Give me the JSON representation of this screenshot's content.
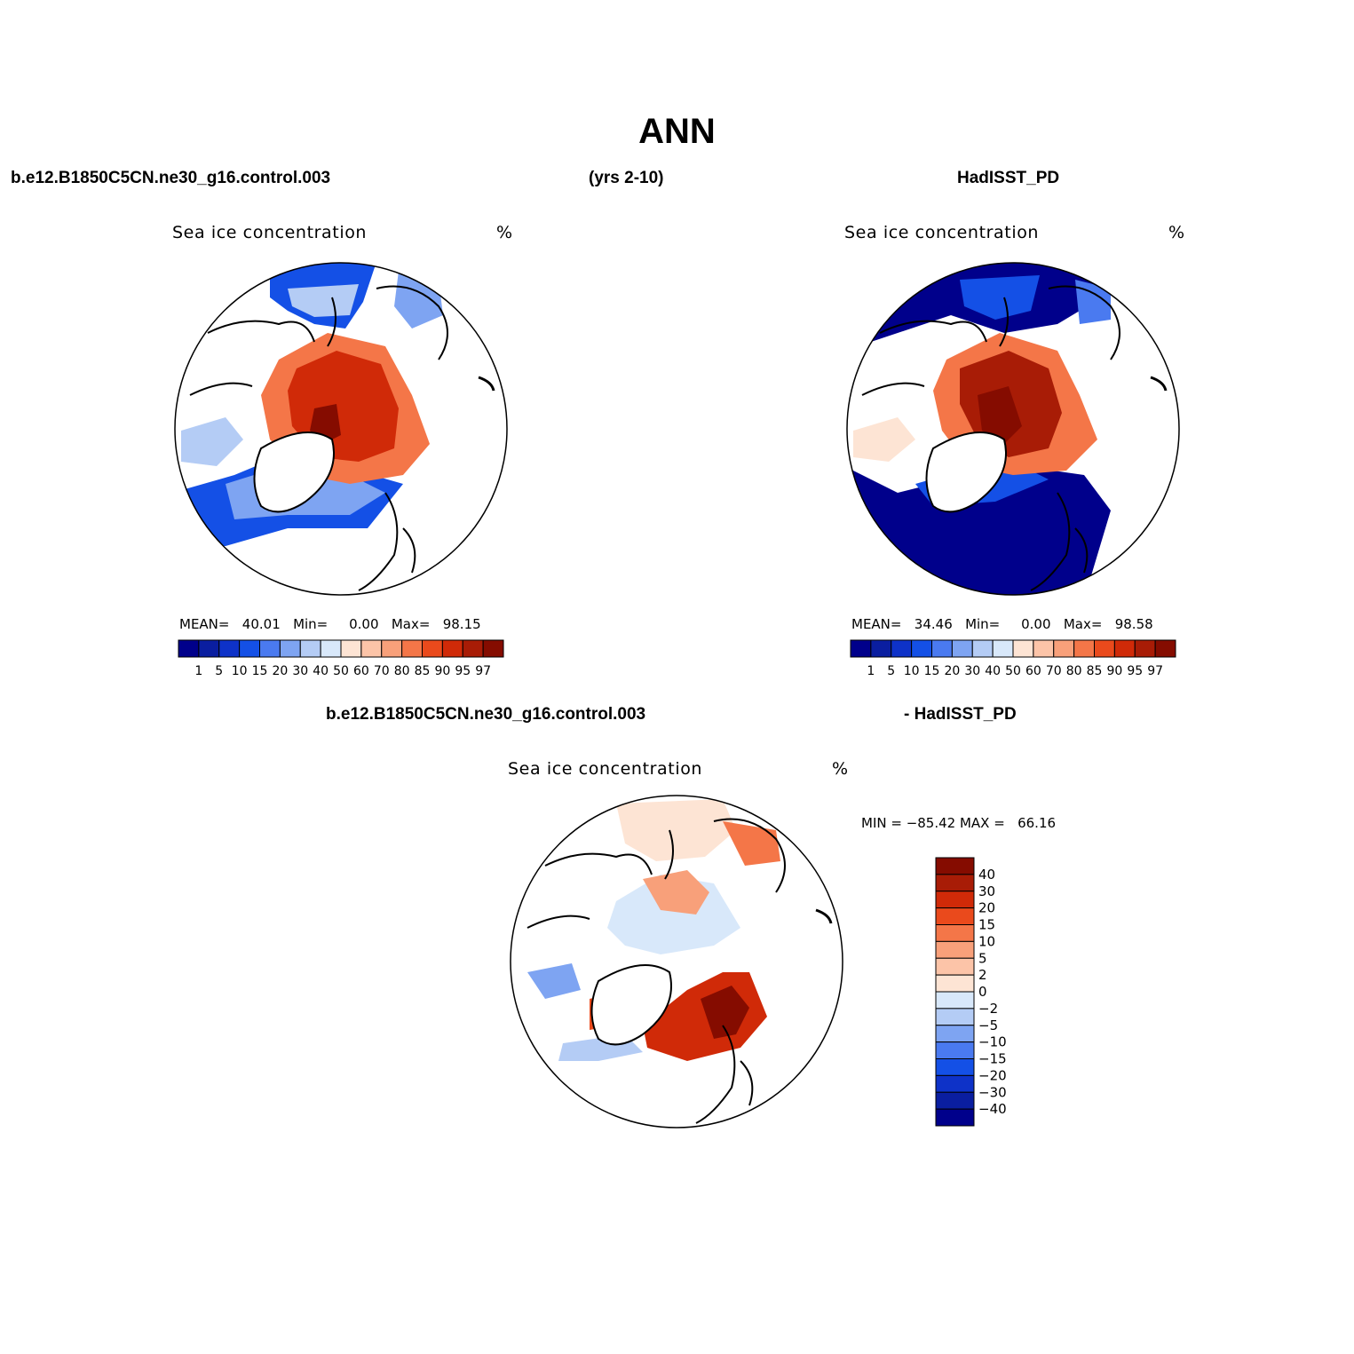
{
  "title": "ANN",
  "header": {
    "left": "b.e12.B1850C5CN.ne30_g16.control.003",
    "center": "(yrs 2-10)",
    "right": "HadISST_PD"
  },
  "diff_header": {
    "left": "b.e12.B1850C5CN.ne30_g16.control.003",
    "right": "- HadISST_PD"
  },
  "panels": [
    {
      "field": "Sea ice concentration",
      "units": "%",
      "stats": {
        "mean_label": "MEAN=",
        "mean": "40.01",
        "min_label": "Min=",
        "min": "0.00",
        "max_label": "Max=",
        "max": "98.15"
      }
    },
    {
      "field": "Sea ice concentration",
      "units": "%",
      "stats": {
        "mean_label": "MEAN=",
        "mean": "34.46",
        "min_label": "Min=",
        "min": "0.00",
        "max_label": "Max=",
        "max": "98.58"
      }
    }
  ],
  "diff_panel": {
    "field": "Sea ice concentration",
    "units": "%",
    "minmax": "MIN = −85.42 MAX =   66.16"
  },
  "colorbar_horizontal": {
    "labels": [
      "1",
      "5",
      "10",
      "15",
      "20",
      "30",
      "40",
      "50",
      "60",
      "70",
      "80",
      "85",
      "90",
      "95",
      "97"
    ],
    "colors": [
      "#00008b",
      "#0a1ea0",
      "#0e32c8",
      "#1450e6",
      "#4a7af0",
      "#7ea4f2",
      "#b4ccf5",
      "#d8e8fa",
      "#fde4d4",
      "#fcc4a8",
      "#f8a07a",
      "#f47648",
      "#ea4a1c",
      "#d02a08",
      "#a81c06",
      "#850c00"
    ]
  },
  "colorbar_vertical": {
    "labels": [
      "40",
      "30",
      "20",
      "15",
      "10",
      "5",
      "2",
      "0",
      "−2",
      "−5",
      "−10",
      "−15",
      "−20",
      "−30",
      "−40"
    ],
    "colors": [
      "#850c00",
      "#a81c06",
      "#d02a08",
      "#ea4a1c",
      "#f47648",
      "#f8a07a",
      "#fcc4a8",
      "#fde4d4",
      "#d8e8fa",
      "#b4ccf5",
      "#7ea4f2",
      "#4a7af0",
      "#1450e6",
      "#0e32c8",
      "#0a1ea0",
      "#00008b"
    ]
  }
}
